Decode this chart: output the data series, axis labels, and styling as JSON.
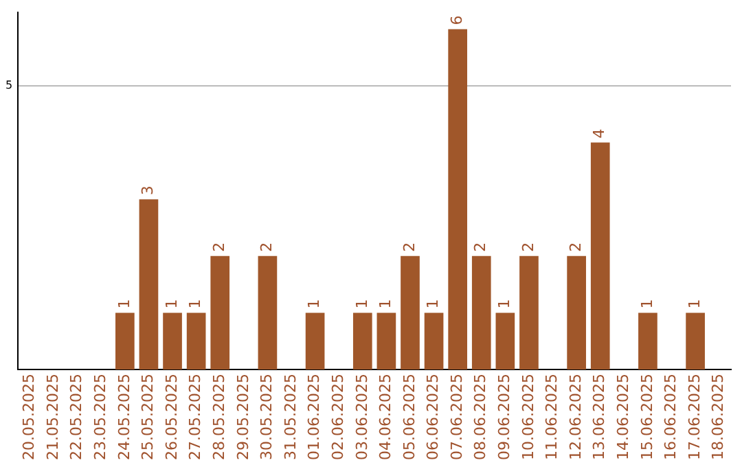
{
  "chart_data": {
    "type": "bar",
    "categories": [
      "20.05.2025",
      "21.05.2025",
      "22.05.2025",
      "23.05.2025",
      "24.05.2025",
      "25.05.2025",
      "26.05.2025",
      "27.05.2025",
      "28.05.2025",
      "29.05.2025",
      "30.05.2025",
      "31.05.2025",
      "01.06.2025",
      "02.06.2025",
      "03.06.2025",
      "04.06.2025",
      "05.06.2025",
      "06.06.2025",
      "07.06.2025",
      "08.06.2025",
      "09.06.2025",
      "10.06.2025",
      "11.06.2025",
      "12.06.2025",
      "13.06.2025",
      "14.06.2025",
      "15.06.2025",
      "16.06.2025",
      "17.06.2025",
      "18.06.2025"
    ],
    "values": [
      0,
      0,
      0,
      0,
      1,
      3,
      1,
      1,
      2,
      0,
      2,
      0,
      1,
      0,
      1,
      1,
      2,
      1,
      6,
      2,
      1,
      2,
      0,
      2,
      4,
      0,
      1,
      0,
      1,
      0
    ],
    "value_labels": [
      null,
      null,
      null,
      null,
      "1",
      "3",
      "1",
      "1",
      "2",
      null,
      "2",
      null,
      "1",
      null,
      "1",
      "1",
      "2",
      "1",
      "6",
      "2",
      "1",
      "2",
      null,
      "2",
      "4",
      null,
      "1",
      null,
      "1",
      null
    ],
    "color": "#a0572a",
    "ylim": [
      0,
      6.3
    ],
    "yticks": [
      5
    ],
    "grid": "y",
    "legend": false
  }
}
